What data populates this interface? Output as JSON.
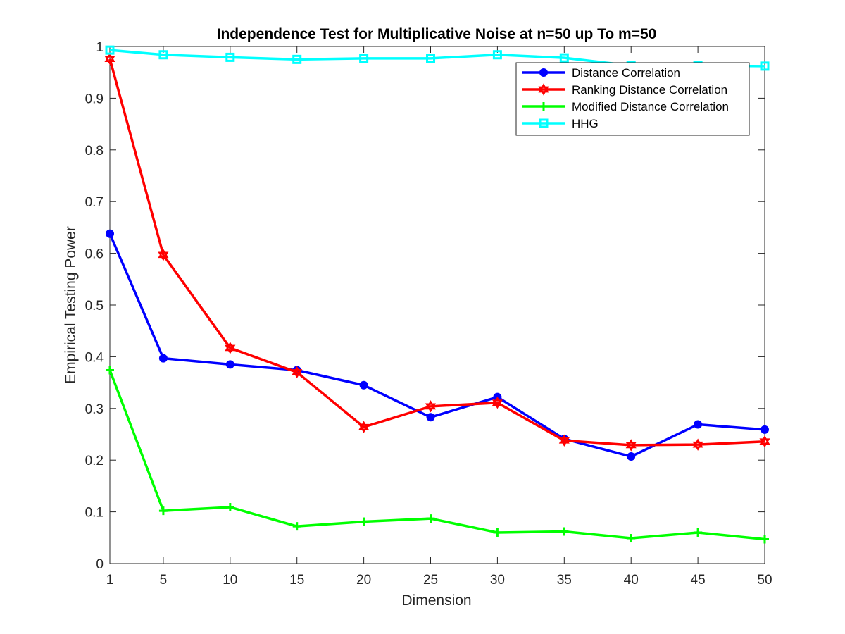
{
  "chart_data": {
    "type": "line",
    "title": "Independence Test for Multiplicative Noise at n=50 up To m=50",
    "xlabel": "Dimension",
    "ylabel": "Empirical Testing Power",
    "x": [
      1,
      5,
      10,
      15,
      20,
      25,
      30,
      35,
      40,
      45,
      50
    ],
    "xlim": [
      1,
      50
    ],
    "ylim": [
      0,
      1
    ],
    "xticks": [
      1,
      5,
      10,
      15,
      20,
      25,
      30,
      35,
      40,
      45,
      50
    ],
    "yticks": [
      0,
      0.1,
      0.2,
      0.3,
      0.4,
      0.5,
      0.6,
      0.7,
      0.8,
      0.9,
      1
    ],
    "grid": false,
    "legend_position": "top-right",
    "series": [
      {
        "name": "Distance Correlation",
        "color": "#0000ff",
        "marker": "circle-filled",
        "values": [
          0.638,
          0.397,
          0.385,
          0.374,
          0.345,
          0.283,
          0.322,
          0.241,
          0.207,
          0.269,
          0.259
        ]
      },
      {
        "name": "Ranking Distance Correlation",
        "color": "#ff0000",
        "marker": "hexagram-open",
        "values": [
          0.976,
          0.597,
          0.417,
          0.37,
          0.264,
          0.304,
          0.311,
          0.238,
          0.229,
          0.23,
          0.236
        ]
      },
      {
        "name": "Modified Distance Correlation",
        "color": "#00ff00",
        "marker": "plus",
        "values": [
          0.374,
          0.102,
          0.109,
          0.072,
          0.081,
          0.087,
          0.06,
          0.062,
          0.049,
          0.06,
          0.047
        ]
      },
      {
        "name": "HHG",
        "color": "#00ffff",
        "marker": "square-open",
        "values": [
          0.993,
          0.984,
          0.979,
          0.975,
          0.977,
          0.977,
          0.984,
          0.978,
          0.963,
          0.963,
          0.962
        ]
      }
    ]
  }
}
